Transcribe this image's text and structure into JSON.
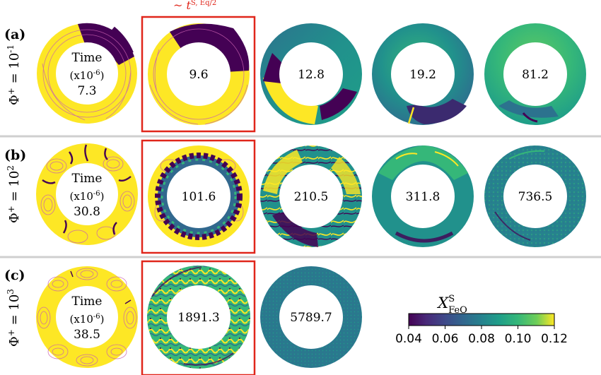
{
  "header": {
    "highlight_label": "~ t",
    "highlight_sup": "S, Eq/2"
  },
  "rows": [
    {
      "panel": "(a)",
      "phi_base": "Φ",
      "phi_sup": "+",
      "phi_eq": " = 10",
      "phi_exp": "-1",
      "time_label": "Time",
      "time_unit": "(x10",
      "time_unit_exp": "-6",
      "time_unit_close": ")",
      "times": [
        "7.3",
        "9.6",
        "12.8",
        "19.2",
        "81.2"
      ]
    },
    {
      "panel": "(b)",
      "phi_base": "Φ",
      "phi_sup": "+",
      "phi_eq": " = 10",
      "phi_exp": "2",
      "time_label": "Time",
      "time_unit": "(x10",
      "time_unit_exp": "-6",
      "time_unit_close": ")",
      "times": [
        "30.8",
        "101.6",
        "210.5",
        "311.8",
        "736.5"
      ]
    },
    {
      "panel": "(c)",
      "phi_base": "Φ",
      "phi_sup": "+",
      "phi_eq": " = 10",
      "phi_exp": "3",
      "time_label": "Time",
      "time_unit": "(x10",
      "time_unit_exp": "-6",
      "time_unit_close": ")",
      "times": [
        "38.5",
        "1891.3",
        "5789.7"
      ]
    }
  ],
  "colorbar": {
    "label": "X",
    "label_sup": "S",
    "label_sub": "FeO",
    "colormap": "viridis",
    "range": [
      0.04,
      0.12
    ],
    "ticks": [
      "0.04",
      "0.06",
      "0.08",
      "0.10",
      "0.12"
    ]
  },
  "colors": {
    "yellow": "#fde725",
    "purple": "#440154",
    "teal": "#21918c",
    "green": "#5ec962",
    "streamline": "#c85fb0",
    "highlight": "#e0261b"
  }
}
